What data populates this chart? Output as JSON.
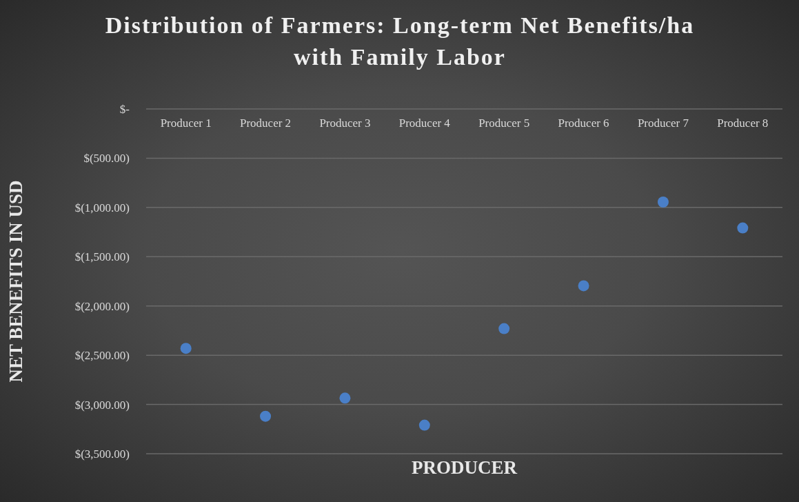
{
  "chart_data": {
    "type": "scatter",
    "title": "Distribution of Farmers: Long-term Net Benefits/ha with Family Labor",
    "xlabel": "PRODUCER",
    "ylabel": "NET BENEFITS IN USD",
    "categories": [
      "Producer 1",
      "Producer 2",
      "Producer 3",
      "Producer 4",
      "Producer 5",
      "Producer 6",
      "Producer 7",
      "Producer 8"
    ],
    "values": [
      -2430,
      -3120,
      -2935,
      -3210,
      -2230,
      -1795,
      -945,
      -1208
    ],
    "color": "#4a7fc7",
    "marker": "circle",
    "grid": "y",
    "ylim": [
      -3500,
      0
    ],
    "yticks": [
      {
        "value": 0,
        "label": "$-"
      },
      {
        "value": -500,
        "label": "$(500.00)"
      },
      {
        "value": -1000,
        "label": "$(1,000.00)"
      },
      {
        "value": -1500,
        "label": "$(1,500.00)"
      },
      {
        "value": -2000,
        "label": "$(2,000.00)"
      },
      {
        "value": -2500,
        "label": "$(2,500.00)"
      },
      {
        "value": -3000,
        "label": "$(3,000.00)"
      },
      {
        "value": -3500,
        "label": "$(3,500.00)"
      }
    ]
  }
}
